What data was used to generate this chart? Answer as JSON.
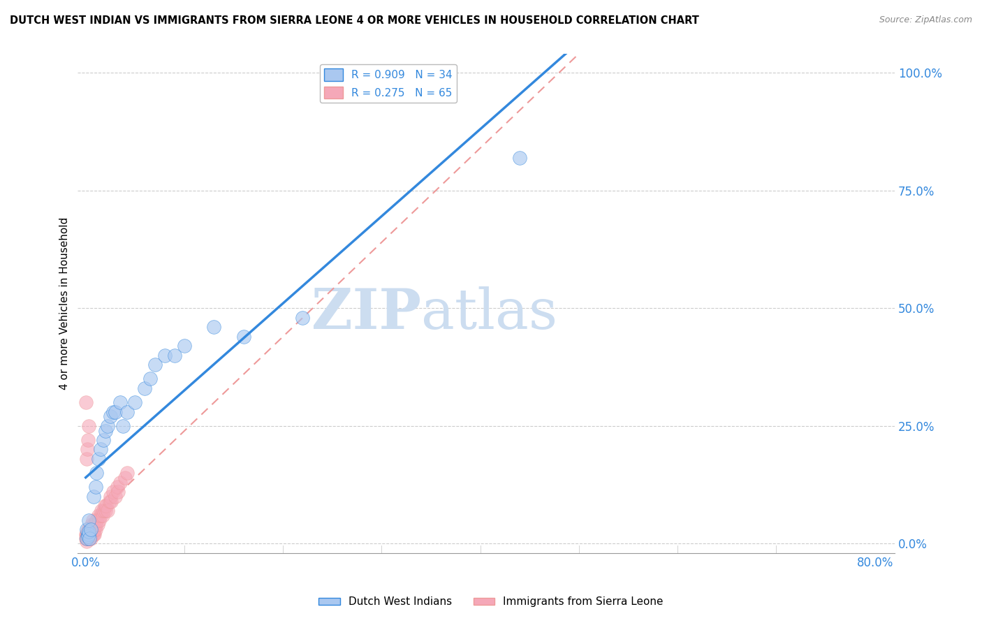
{
  "title": "DUTCH WEST INDIAN VS IMMIGRANTS FROM SIERRA LEONE 4 OR MORE VEHICLES IN HOUSEHOLD CORRELATION CHART",
  "source": "Source: ZipAtlas.com",
  "ylabel_label": "4 or more Vehicles in Household",
  "legend_labels": [
    "Dutch West Indians",
    "Immigrants from Sierra Leone"
  ],
  "R1": 0.909,
  "N1": 34,
  "R2": 0.275,
  "N2": 65,
  "color1": "#aac8f0",
  "color2": "#f5a8b8",
  "trendline1_color": "#3388dd",
  "trendline2_color": "#ee9999",
  "watermark_color": "#ccddf0",
  "dutch_x": [
    0.001,
    0.002,
    0.001,
    0.003,
    0.002,
    0.003,
    0.004,
    0.003,
    0.005,
    0.008,
    0.01,
    0.011,
    0.013,
    0.015,
    0.018,
    0.02,
    0.022,
    0.025,
    0.028,
    0.03,
    0.035,
    0.038,
    0.042,
    0.05,
    0.06,
    0.065,
    0.07,
    0.08,
    0.09,
    0.1,
    0.13,
    0.16,
    0.22,
    0.44
  ],
  "dutch_y": [
    0.01,
    0.02,
    0.03,
    0.02,
    0.015,
    0.025,
    0.01,
    0.05,
    0.03,
    0.1,
    0.12,
    0.15,
    0.18,
    0.2,
    0.22,
    0.24,
    0.25,
    0.27,
    0.28,
    0.28,
    0.3,
    0.25,
    0.28,
    0.3,
    0.33,
    0.35,
    0.38,
    0.4,
    0.4,
    0.42,
    0.46,
    0.44,
    0.48,
    0.82
  ],
  "sierra_x": [
    0.0003,
    0.0005,
    0.0006,
    0.0008,
    0.001,
    0.001,
    0.0012,
    0.0015,
    0.0015,
    0.002,
    0.002,
    0.002,
    0.0025,
    0.003,
    0.003,
    0.003,
    0.003,
    0.003,
    0.004,
    0.004,
    0.004,
    0.004,
    0.005,
    0.005,
    0.005,
    0.005,
    0.006,
    0.006,
    0.006,
    0.007,
    0.007,
    0.007,
    0.008,
    0.008,
    0.009,
    0.009,
    0.01,
    0.01,
    0.011,
    0.012,
    0.013,
    0.014,
    0.015,
    0.016,
    0.017,
    0.018,
    0.019,
    0.02,
    0.021,
    0.022,
    0.024,
    0.025,
    0.026,
    0.028,
    0.03,
    0.032,
    0.033,
    0.035,
    0.04,
    0.042,
    0.0005,
    0.001,
    0.0015,
    0.002,
    0.003
  ],
  "sierra_y": [
    0.01,
    0.02,
    0.005,
    0.015,
    0.01,
    0.02,
    0.015,
    0.02,
    0.025,
    0.01,
    0.02,
    0.03,
    0.02,
    0.01,
    0.015,
    0.02,
    0.025,
    0.03,
    0.01,
    0.015,
    0.02,
    0.03,
    0.01,
    0.02,
    0.025,
    0.03,
    0.02,
    0.03,
    0.04,
    0.02,
    0.03,
    0.05,
    0.02,
    0.04,
    0.02,
    0.03,
    0.03,
    0.04,
    0.05,
    0.04,
    0.06,
    0.05,
    0.06,
    0.07,
    0.06,
    0.07,
    0.08,
    0.07,
    0.08,
    0.07,
    0.09,
    0.1,
    0.09,
    0.11,
    0.1,
    0.12,
    0.11,
    0.13,
    0.14,
    0.15,
    0.3,
    0.18,
    0.2,
    0.22,
    0.25
  ],
  "xlim": [
    0.0,
    0.8
  ],
  "ylim": [
    0.0,
    1.0
  ],
  "x_ticks": [
    0.0,
    0.1,
    0.2,
    0.3,
    0.4,
    0.5,
    0.6,
    0.7,
    0.8
  ],
  "y_ticks": [
    0.0,
    0.25,
    0.5,
    0.75,
    1.0
  ]
}
